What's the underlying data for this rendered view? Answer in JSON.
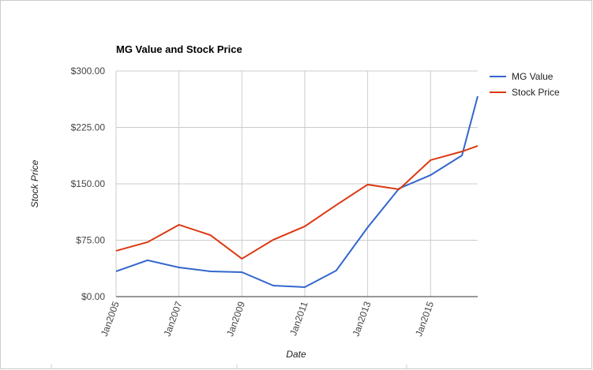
{
  "chart_data": {
    "type": "line",
    "title": "MG Value and Stock Price",
    "x_label": "Date",
    "y_label": "Stock Price",
    "x": [
      2005,
      2006,
      2007,
      2008,
      2009,
      2010,
      2011,
      2012,
      2013,
      2014,
      2015,
      2016,
      2016.5
    ],
    "xlim": [
      2005,
      2016.5
    ],
    "xticks": [
      {
        "value": 2005,
        "label": "Jan2005"
      },
      {
        "value": 2007,
        "label": "Jan2007"
      },
      {
        "value": 2009,
        "label": "Jan2009"
      },
      {
        "value": 2011,
        "label": "Jan2011"
      },
      {
        "value": 2013,
        "label": "Jan2013"
      },
      {
        "value": 2015,
        "label": "Jan2015"
      }
    ],
    "ylim": [
      0,
      300
    ],
    "yticks": [
      {
        "value": 0,
        "label": "$0.00"
      },
      {
        "value": 75,
        "label": "$75.00"
      },
      {
        "value": 150,
        "label": "$150.00"
      },
      {
        "value": 225,
        "label": "$225.00"
      },
      {
        "value": 300,
        "label": "$300.00"
      }
    ],
    "grid": true,
    "legend": "right",
    "series": [
      {
        "name": "MG Value",
        "color": "#3366cc",
        "values": [
          33.6,
          48.3,
          38.8,
          33.6,
          32.5,
          14.7,
          12.6,
          34.6,
          92,
          143.8,
          161.6,
          187.8,
          266.5
        ]
      },
      {
        "name": "Stock Price",
        "color": "#dc3912",
        "values": [
          60.9,
          72.4,
          95.5,
          81.8,
          50.4,
          75.6,
          93.4,
          121.7,
          149,
          142.7,
          181.5,
          193,
          200.4
        ]
      }
    ]
  }
}
